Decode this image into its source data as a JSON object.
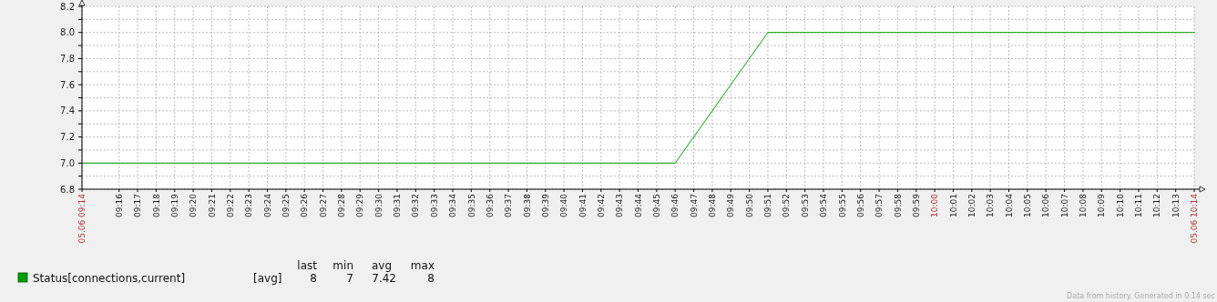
{
  "chart_data": {
    "type": "line",
    "x": [
      9.233333,
      9.766667,
      9.85,
      10.233333
    ],
    "series": [
      {
        "name": "Status[connections,current]",
        "color": "#00a000",
        "values": [
          7,
          7,
          8,
          8
        ]
      }
    ],
    "xlim": [
      9.233333,
      10.233333
    ],
    "xticks": [
      {
        "value": 9.233333,
        "label": "05.06 09:14"
      },
      {
        "value": 9.266667,
        "label": "09:16"
      },
      {
        "value": 9.283333,
        "label": "09:17"
      },
      {
        "value": 9.3,
        "label": "09:18"
      },
      {
        "value": 9.316667,
        "label": "09:19"
      },
      {
        "value": 9.333333,
        "label": "09:20"
      },
      {
        "value": 9.35,
        "label": "09:21"
      },
      {
        "value": 9.366667,
        "label": "09:22"
      },
      {
        "value": 9.383333,
        "label": "09:23"
      },
      {
        "value": 9.4,
        "label": "09:24"
      },
      {
        "value": 9.416667,
        "label": "09:25"
      },
      {
        "value": 9.433333,
        "label": "09:26"
      },
      {
        "value": 9.45,
        "label": "09:27"
      },
      {
        "value": 9.466667,
        "label": "09:28"
      },
      {
        "value": 9.483333,
        "label": "09:29"
      },
      {
        "value": 9.5,
        "label": "09:30"
      },
      {
        "value": 9.516667,
        "label": "09:31"
      },
      {
        "value": 9.533333,
        "label": "09:32"
      },
      {
        "value": 9.55,
        "label": "09:33"
      },
      {
        "value": 9.566667,
        "label": "09:34"
      },
      {
        "value": 9.583333,
        "label": "09:35"
      },
      {
        "value": 9.6,
        "label": "09:36"
      },
      {
        "value": 9.616667,
        "label": "09:37"
      },
      {
        "value": 9.633333,
        "label": "09:38"
      },
      {
        "value": 9.65,
        "label": "09:39"
      },
      {
        "value": 9.666667,
        "label": "09:40"
      },
      {
        "value": 9.683333,
        "label": "09:41"
      },
      {
        "value": 9.7,
        "label": "09:42"
      },
      {
        "value": 9.716667,
        "label": "09:43"
      },
      {
        "value": 9.733333,
        "label": "09:44"
      },
      {
        "value": 9.75,
        "label": "09:45"
      },
      {
        "value": 9.766667,
        "label": "09:46"
      },
      {
        "value": 9.783333,
        "label": "09:47"
      },
      {
        "value": 9.8,
        "label": "09:48"
      },
      {
        "value": 9.816667,
        "label": "09:49"
      },
      {
        "value": 9.833333,
        "label": "09:50"
      },
      {
        "value": 9.85,
        "label": "09:51"
      },
      {
        "value": 9.866667,
        "label": "09:52"
      },
      {
        "value": 9.883333,
        "label": "09:53"
      },
      {
        "value": 9.9,
        "label": "09:54"
      },
      {
        "value": 9.916667,
        "label": "09:55"
      },
      {
        "value": 9.933333,
        "label": "09:56"
      },
      {
        "value": 9.95,
        "label": "09:57"
      },
      {
        "value": 9.966667,
        "label": "09:58"
      },
      {
        "value": 9.983333,
        "label": "09:59"
      },
      {
        "value": 10,
        "label": "10:00"
      },
      {
        "value": 10.016667,
        "label": "10:01"
      },
      {
        "value": 10.033333,
        "label": "10:02"
      },
      {
        "value": 10.05,
        "label": "10:03"
      },
      {
        "value": 10.066667,
        "label": "10:04"
      },
      {
        "value": 10.083333,
        "label": "10:05"
      },
      {
        "value": 10.1,
        "label": "10:06"
      },
      {
        "value": 10.116667,
        "label": "10:07"
      },
      {
        "value": 10.133333,
        "label": "10:08"
      },
      {
        "value": 10.15,
        "label": "10:09"
      },
      {
        "value": 10.166667,
        "label": "10:10"
      },
      {
        "value": 10.183333,
        "label": "10:11"
      },
      {
        "value": 10.2,
        "label": "10:12"
      },
      {
        "value": 10.216667,
        "label": "10:13"
      },
      {
        "value": 10.233333,
        "label": "05.06 10:14"
      }
    ],
    "ylim": [
      6.8,
      8.2
    ],
    "yticks": [
      {
        "value": 6.8,
        "label": "6.8"
      },
      {
        "value": 6.9,
        "label": null
      },
      {
        "value": 7,
        "label": "7.0"
      },
      {
        "value": 7.1,
        "label": null
      },
      {
        "value": 7.2,
        "label": "7.2"
      },
      {
        "value": 7.3,
        "label": null
      },
      {
        "value": 7.4,
        "label": "7.4"
      },
      {
        "value": 7.5,
        "label": null
      },
      {
        "value": 7.6,
        "label": "7.6"
      },
      {
        "value": 7.7,
        "label": null
      },
      {
        "value": 7.8,
        "label": "7.8"
      },
      {
        "value": 7.9,
        "label": null
      },
      {
        "value": 8,
        "label": "8.0"
      },
      {
        "value": 8.1,
        "label": null
      },
      {
        "value": 8.2,
        "label": "8.2"
      }
    ],
    "grid": true,
    "legend": "bottom left",
    "annotations": [
      "[avg]",
      "last",
      "min",
      "avg",
      "max",
      "8",
      "7",
      "7.42",
      "8",
      "Data from history. Generated in 0.14 sec"
    ]
  }
}
